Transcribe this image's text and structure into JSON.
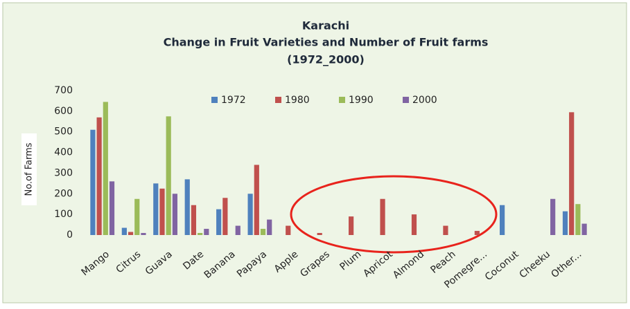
{
  "chart_data": {
    "type": "bar",
    "title": [
      "Karachi",
      "Change in Fruit Varieties and Number of Fruit farms",
      "(1972_2000)"
    ],
    "y_label": "No.of Farms",
    "categories": [
      "Mango",
      "Citrus",
      "Guava",
      "Date",
      "Banana",
      "Papaya",
      "Apple",
      "Grapes",
      "Plum",
      "Apricot",
      "Almond",
      "Peach",
      "Pomegre...",
      "Coconut",
      "Cheeku",
      "Other..."
    ],
    "series": [
      {
        "name": "1972",
        "color": "#4f81bd",
        "values": [
          510,
          35,
          250,
          270,
          125,
          200,
          0,
          0,
          0,
          0,
          0,
          0,
          0,
          145,
          0,
          115
        ]
      },
      {
        "name": "1980",
        "color": "#c0504d",
        "values": [
          570,
          15,
          225,
          145,
          180,
          340,
          45,
          10,
          90,
          175,
          100,
          45,
          20,
          0,
          0,
          595
        ]
      },
      {
        "name": "1990",
        "color": "#9bbb59",
        "values": [
          645,
          175,
          575,
          10,
          0,
          30,
          0,
          0,
          0,
          0,
          0,
          0,
          0,
          0,
          0,
          150
        ]
      },
      {
        "name": "2000",
        "color": "#8064a2",
        "values": [
          260,
          10,
          200,
          30,
          45,
          75,
          0,
          0,
          0,
          0,
          0,
          0,
          0,
          0,
          175,
          55
        ]
      }
    ],
    "ylim": [
      0,
      700
    ],
    "yticks": [
      0,
      100,
      200,
      300,
      400,
      500,
      600,
      700
    ],
    "grid": false,
    "legend": "top"
  }
}
